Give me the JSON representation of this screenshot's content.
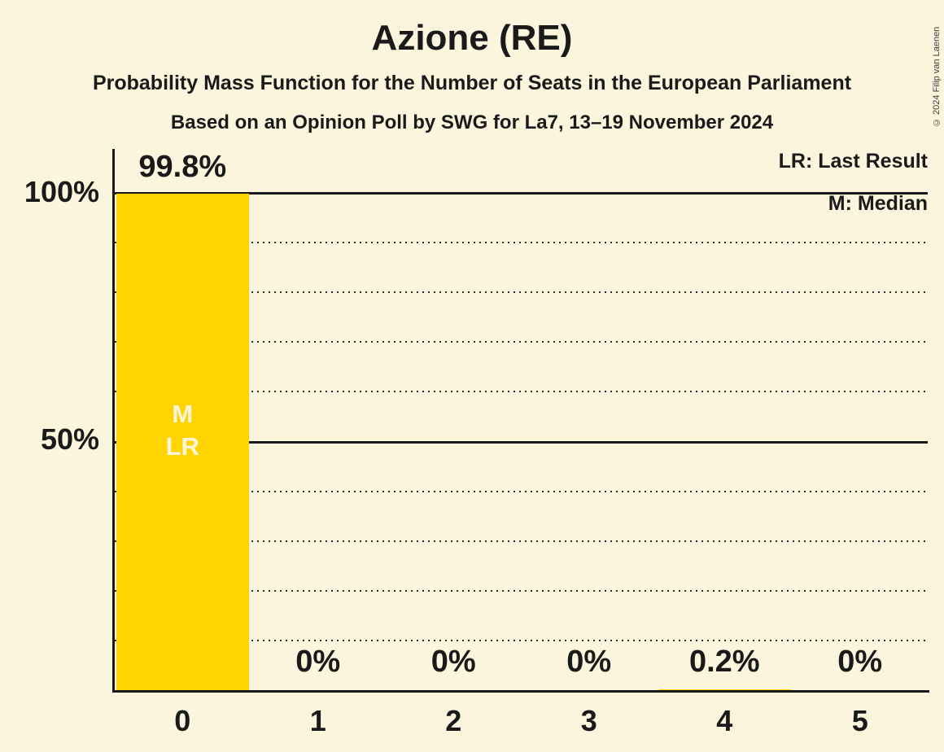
{
  "header": {
    "title": "Azione (RE)",
    "subtitle": "Probability Mass Function for the Number of Seats in the European Parliament",
    "poll_info": "Based on an Opinion Poll by SWG for La7, 13–19 November 2024"
  },
  "legend": {
    "lr": "LR: Last Result",
    "m": "M: Median"
  },
  "footer": {
    "copyright": "© 2024 Filip van Laenen"
  },
  "colors": {
    "background": "#FAF5DC",
    "bar": "#FFD400",
    "text": "#1a1a1a",
    "bar_annotation_text": "#FAF5DC"
  },
  "chart_data": {
    "type": "bar",
    "title": "Azione (RE)",
    "categories": [
      "0",
      "1",
      "2",
      "3",
      "4",
      "5"
    ],
    "values": [
      99.8,
      0,
      0,
      0,
      0.2,
      0
    ],
    "value_labels": [
      "99.8%",
      "0%",
      "0%",
      "0%",
      "0.2%",
      "0%"
    ],
    "ylim": [
      0,
      100
    ],
    "ytick_labels": [
      "100%",
      "50%"
    ],
    "gridlines": {
      "solid_percents": [
        100,
        50
      ],
      "dotted_percents": [
        90,
        80,
        70,
        60,
        40,
        30,
        20,
        10
      ]
    },
    "bar_annotations": [
      {
        "category": "0",
        "lines": [
          "M",
          "LR"
        ]
      }
    ],
    "legend_position": "top-right",
    "xlabel": "",
    "ylabel": ""
  }
}
